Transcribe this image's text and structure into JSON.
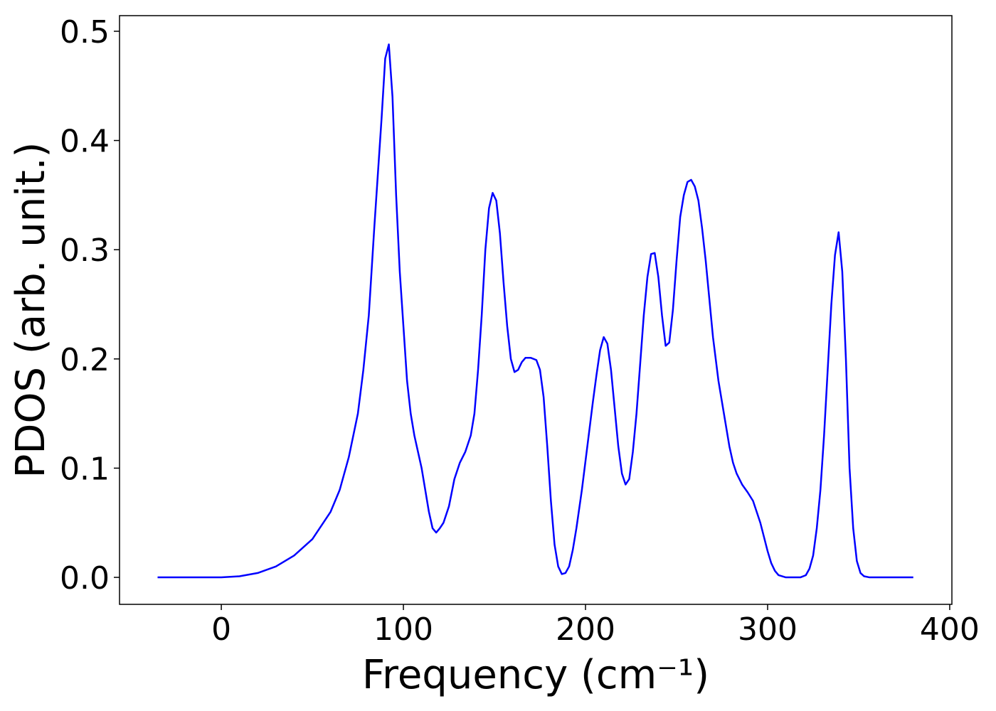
{
  "chart_data": {
    "type": "line",
    "x_label": "Frequency (cm⁻¹)",
    "y_label": "PDOS (arb. unit.)",
    "xlim": [
      -55.9,
      401.2
    ],
    "ylim": [
      -0.0247,
      0.5143
    ],
    "xticks": [
      0,
      100,
      200,
      300,
      400
    ],
    "yticks": [
      {
        "value": 0,
        "label": "0.0"
      },
      0.1,
      0.2,
      0.3,
      0.4,
      0.5
    ],
    "grid": false,
    "x": [
      -35,
      0,
      10,
      20,
      30,
      40,
      50,
      60,
      65,
      70,
      75,
      78,
      81,
      84,
      86,
      88,
      90,
      92,
      94,
      96,
      98,
      100,
      102,
      104,
      106,
      110,
      114,
      116,
      118,
      120,
      122,
      125,
      128,
      131,
      134,
      137,
      139,
      141,
      143,
      145,
      147,
      149,
      151,
      153,
      155,
      157,
      159,
      161,
      163,
      165,
      167,
      170,
      173,
      175,
      177,
      179,
      181,
      183,
      185,
      187,
      189,
      191,
      193,
      195,
      198,
      201,
      204,
      206,
      208,
      210,
      212,
      214,
      216,
      218,
      220,
      222,
      224,
      226,
      228,
      230,
      232,
      234,
      236,
      238,
      240,
      242,
      244,
      246,
      248,
      250,
      252,
      254,
      256,
      258,
      260,
      262,
      264,
      266,
      268,
      270,
      273,
      276,
      279,
      281,
      283,
      286,
      289,
      292,
      294,
      296,
      298,
      300,
      302,
      304,
      306,
      310,
      318,
      321,
      323,
      325,
      327,
      329,
      331,
      333,
      335,
      337,
      339,
      341,
      343,
      345,
      347,
      349,
      351,
      353,
      356,
      380
    ],
    "series": [
      {
        "name": "PDOS",
        "color": "#0000ff",
        "values": [
          0,
          0,
          0.001,
          0.004,
          0.01,
          0.02,
          0.035,
          0.06,
          0.08,
          0.11,
          0.15,
          0.19,
          0.24,
          0.32,
          0.37,
          0.42,
          0.475,
          0.488,
          0.44,
          0.35,
          0.28,
          0.23,
          0.18,
          0.15,
          0.13,
          0.1,
          0.06,
          0.045,
          0.041,
          0.045,
          0.05,
          0.065,
          0.09,
          0.105,
          0.115,
          0.13,
          0.15,
          0.19,
          0.24,
          0.3,
          0.338,
          0.352,
          0.345,
          0.315,
          0.27,
          0.23,
          0.2,
          0.188,
          0.19,
          0.197,
          0.201,
          0.201,
          0.199,
          0.19,
          0.165,
          0.12,
          0.07,
          0.03,
          0.01,
          0.003,
          0.004,
          0.01,
          0.025,
          0.045,
          0.08,
          0.12,
          0.16,
          0.185,
          0.208,
          0.22,
          0.214,
          0.19,
          0.155,
          0.12,
          0.095,
          0.085,
          0.09,
          0.115,
          0.15,
          0.195,
          0.24,
          0.275,
          0.296,
          0.297,
          0.275,
          0.24,
          0.212,
          0.215,
          0.245,
          0.29,
          0.33,
          0.35,
          0.362,
          0.364,
          0.358,
          0.345,
          0.32,
          0.29,
          0.255,
          0.22,
          0.18,
          0.15,
          0.12,
          0.105,
          0.095,
          0.085,
          0.078,
          0.07,
          0.06,
          0.05,
          0.037,
          0.024,
          0.013,
          0.006,
          0.002,
          0,
          0,
          0.002,
          0.008,
          0.02,
          0.045,
          0.08,
          0.13,
          0.19,
          0.25,
          0.295,
          0.316,
          0.28,
          0.2,
          0.1,
          0.045,
          0.015,
          0.004,
          0.001,
          0,
          0
        ]
      }
    ]
  }
}
